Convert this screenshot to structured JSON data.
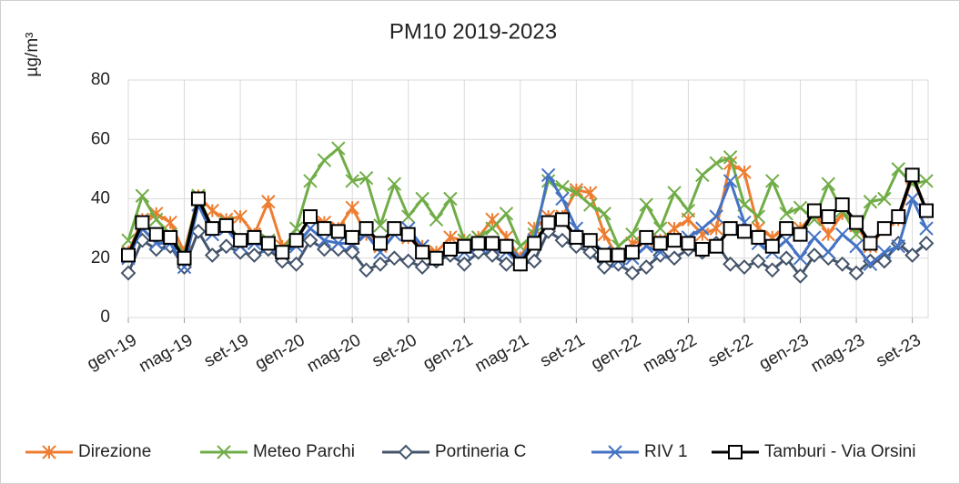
{
  "chart_data": {
    "type": "line",
    "title": "PM10 2019-2023",
    "y_label": "µg/m³",
    "categories": [
      "gen-19",
      null,
      null,
      null,
      "mag-19",
      null,
      null,
      null,
      "set-19",
      null,
      null,
      null,
      "gen-20",
      null,
      null,
      null,
      "mag-20",
      null,
      null,
      null,
      "set-20",
      null,
      null,
      null,
      "gen-21",
      null,
      null,
      null,
      "mag-21",
      null,
      null,
      null,
      "set-21",
      null,
      null,
      null,
      "gen-22",
      null,
      null,
      null,
      "mag-22",
      null,
      null,
      null,
      "set-22",
      null,
      null,
      null,
      "gen-23",
      null,
      null,
      null,
      "mag-23",
      null,
      null,
      null,
      "set-23",
      null
    ],
    "ylim": [
      0,
      80
    ],
    "yticks": [
      0,
      20,
      40,
      60,
      80
    ],
    "grid": true,
    "legend": "bottom",
    "series": [
      {
        "name": "Direzione",
        "color": "#ed7d31",
        "marker": "star",
        "values": [
          22,
          33,
          35,
          32,
          22,
          41,
          36,
          33,
          34,
          28,
          39,
          24,
          26,
          34,
          32,
          30,
          37,
          28,
          24,
          30,
          27,
          24,
          22,
          27,
          26,
          27,
          33,
          27,
          20,
          30,
          34,
          34,
          43,
          42,
          28,
          20,
          25,
          26,
          26,
          30,
          33,
          28,
          30,
          52,
          49,
          30,
          27,
          30,
          30,
          35,
          28,
          35,
          31,
          24,
          30,
          33,
          47,
          36
        ]
      },
      {
        "name": "Meteo Parchi",
        "color": "#70ad47",
        "marker": "x",
        "values": [
          26,
          41,
          33,
          28,
          21,
          41,
          30,
          32,
          26,
          27,
          26,
          22,
          30,
          46,
          53,
          57,
          46,
          47,
          31,
          45,
          34,
          40,
          33,
          40,
          26,
          27,
          30,
          35,
          24,
          28,
          46,
          44,
          42,
          38,
          35,
          24,
          28,
          38,
          30,
          42,
          36,
          48,
          52,
          54,
          38,
          34,
          46,
          35,
          37,
          33,
          45,
          36,
          28,
          39,
          40,
          50,
          45,
          46
        ]
      },
      {
        "name": "Portineria C",
        "color": "#44546a",
        "marker": "diamond",
        "values": [
          15,
          26,
          23,
          24,
          17,
          29,
          21,
          24,
          22,
          21,
          23,
          19,
          18,
          26,
          23,
          23,
          22,
          16,
          18,
          20,
          19,
          17,
          19,
          21,
          18,
          22,
          21,
          18,
          18,
          19,
          29,
          26,
          24,
          22,
          17,
          18,
          15,
          17,
          21,
          20,
          23,
          22,
          25,
          18,
          17,
          19,
          16,
          20,
          14,
          21,
          20,
          18,
          15,
          19,
          19,
          25,
          21,
          25
        ]
      },
      {
        "name": "RIV 1",
        "color": "#4472c4",
        "marker": "x",
        "values": [
          20,
          30,
          25,
          25,
          17,
          38,
          28,
          30,
          24,
          25,
          24,
          22,
          24,
          30,
          26,
          25,
          25,
          28,
          22,
          28,
          30,
          24,
          20,
          23,
          22,
          24,
          24,
          22,
          20,
          26,
          48,
          40,
          30,
          26,
          22,
          19,
          20,
          24,
          22,
          26,
          27,
          30,
          34,
          46,
          32,
          25,
          22,
          26,
          20,
          27,
          22,
          28,
          24,
          18,
          22,
          24,
          40,
          30
        ]
      },
      {
        "name": "Tamburi - Via Orsini",
        "color": "#000000",
        "marker": "square",
        "values": [
          21,
          32,
          28,
          27,
          20,
          40,
          30,
          31,
          26,
          27,
          25,
          22,
          26,
          34,
          30,
          29,
          27,
          30,
          25,
          30,
          28,
          22,
          20,
          23,
          24,
          25,
          25,
          24,
          18,
          25,
          32,
          33,
          27,
          26,
          21,
          21,
          22,
          27,
          25,
          26,
          25,
          23,
          24,
          30,
          29,
          27,
          24,
          30,
          28,
          36,
          34,
          38,
          32,
          25,
          30,
          34,
          48,
          36
        ]
      }
    ]
  }
}
